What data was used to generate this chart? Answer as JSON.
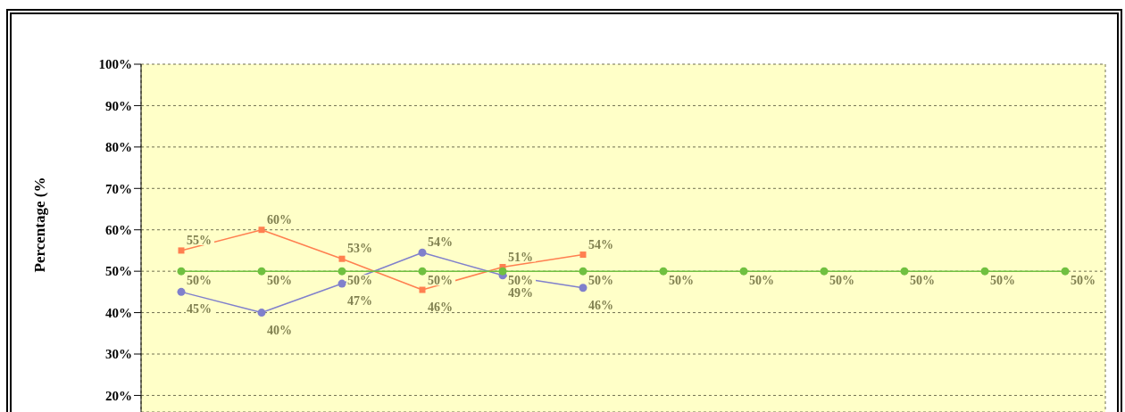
{
  "chart_data": {
    "type": "line",
    "ylabel": "Percentage (%",
    "categories": [
      null,
      null,
      null,
      null,
      null,
      null,
      null,
      null,
      null,
      null,
      null,
      null
    ],
    "series": [
      {
        "color": "#ff7f50",
        "marker": "square",
        "values": [
          55,
          60,
          53,
          45.5,
          51,
          54,
          null,
          null,
          null,
          null,
          null,
          null
        ],
        "value_labels": [
          "55%",
          "60%",
          "53%",
          "46%",
          "51%",
          "54%",
          null,
          null,
          null,
          null,
          null,
          null
        ]
      },
      {
        "color": "#8080cc",
        "marker": "circle",
        "values": [
          45,
          40,
          47,
          54.5,
          49,
          46,
          null,
          null,
          null,
          null,
          null,
          null
        ],
        "value_labels": [
          "45%",
          "40%",
          "47%",
          "54%",
          "49%",
          "46%",
          null,
          null,
          null,
          null,
          null,
          null
        ]
      },
      {
        "color": "#70c040",
        "marker": "circle",
        "values": [
          50,
          50,
          50,
          50,
          50,
          50,
          50,
          50,
          50,
          50,
          50,
          50
        ],
        "value_labels": [
          "50%",
          "50%",
          "50%",
          "50%",
          "50%",
          "50%",
          "50%",
          "50%",
          "50%",
          "50%",
          "50%",
          "50%"
        ]
      }
    ],
    "ylim": [
      16,
      100
    ],
    "yticks": [
      {
        "value": 20,
        "label": "20%"
      },
      {
        "value": 30,
        "label": "30%"
      },
      {
        "value": 40,
        "label": "40%"
      },
      {
        "value": 50,
        "label": "50%"
      },
      {
        "value": 60,
        "label": "60%"
      },
      {
        "value": 70,
        "label": "70%"
      },
      {
        "value": 80,
        "label": "80%"
      },
      {
        "value": 90,
        "label": "90%"
      },
      {
        "value": 100,
        "label": "100%"
      }
    ],
    "grid": true,
    "tick_labels": "y"
  }
}
